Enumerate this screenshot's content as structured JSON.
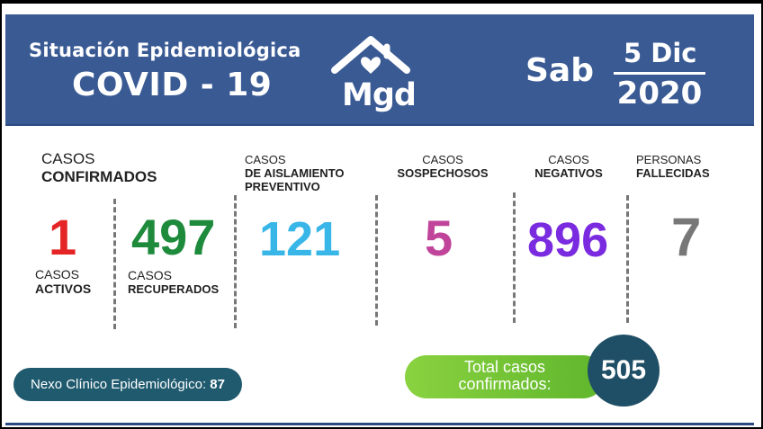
{
  "colors": {
    "brand": "#3a5a94",
    "activos": "#e52525",
    "recuperados": "#1e8a3c",
    "aislamiento": "#39b6e8",
    "sospechosos": "#c0449a",
    "negativos": "#7a2be0",
    "fallecidas": "#777777",
    "nexo": "#1f5a6e",
    "total": "#1f4f66"
  },
  "header": {
    "title_line1": "Situación Epidemiológica",
    "title_line2": "COVID - 19",
    "logo_text": "Mgd",
    "day": "Sab",
    "date_top": "5 Dic",
    "date_bottom": "2020"
  },
  "stats": {
    "confirmados": {
      "label_light": "CASOS",
      "label_bold": "CONFIRMADOS"
    },
    "activos": {
      "value": "1",
      "label_light": "CASOS",
      "label_bold": "ACTIVOS"
    },
    "recuperados": {
      "value": "497",
      "label_light": "CASOS",
      "label_bold": "RECUPERADOS"
    },
    "aislamiento": {
      "value": "121",
      "label_light": "CASOS",
      "label_bold1": "DE AISLAMIENTO",
      "label_bold2": "PREVENTIVO"
    },
    "sospechosos": {
      "value": "5",
      "label_light": "CASOS",
      "label_bold": "SOSPECHOSOS"
    },
    "negativos": {
      "value": "896",
      "label_light": "CASOS",
      "label_bold": "NEGATIVOS"
    },
    "fallecidas": {
      "value": "7",
      "label_light": "PERSONAS",
      "label_bold": "FALLECIDAS"
    }
  },
  "nexo": {
    "label": "Nexo Clínico Epidemiológico:",
    "value": "87"
  },
  "total": {
    "line1": "Total casos",
    "line2": "confirmados:",
    "value": "505"
  }
}
